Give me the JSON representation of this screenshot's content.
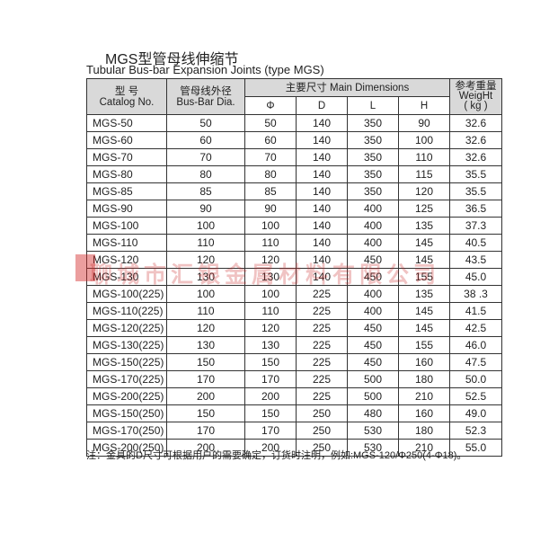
{
  "title": "MGS型管母线伸缩节",
  "subtitle": "Tubular Bus-bar Expansion Joints (type MGS)",
  "headers": {
    "catalog": "型 号\nCatalog No.",
    "diameter": "管母线外径\nBus-Bar Dia.",
    "main": "主要尺寸 Main Dimensions",
    "weight": "参考重量\nWeigHt\n( kg )",
    "phi": "Φ",
    "d": "D",
    "l": "L",
    "h": "H"
  },
  "rows": [
    [
      "MGS-50",
      "50",
      "50",
      "140",
      "350",
      "90",
      "32.6"
    ],
    [
      "MGS-60",
      "60",
      "60",
      "140",
      "350",
      "100",
      "32.6"
    ],
    [
      "MGS-70",
      "70",
      "70",
      "140",
      "350",
      "110",
      "32.6"
    ],
    [
      "MGS-80",
      "80",
      "80",
      "140",
      "350",
      "115",
      "35.5"
    ],
    [
      "MGS-85",
      "85",
      "85",
      "140",
      "350",
      "120",
      "35.5"
    ],
    [
      "MGS-90",
      "90",
      "90",
      "140",
      "400",
      "125",
      "36.5"
    ],
    [
      "MGS-100",
      "100",
      "100",
      "140",
      "400",
      "135",
      "37.3"
    ],
    [
      "MGS-110",
      "110",
      "110",
      "140",
      "400",
      "145",
      "40.5"
    ],
    [
      "MGS-120",
      "120",
      "120",
      "140",
      "450",
      "145",
      "43.5"
    ],
    [
      "MGS-130",
      "130",
      "130",
      "140",
      "450",
      "155",
      "45.0"
    ],
    [
      "MGS-100(225)",
      "100",
      "100",
      "225",
      "400",
      "135",
      "38 .3"
    ],
    [
      "MGS-110(225)",
      "110",
      "110",
      "225",
      "400",
      "145",
      "41.5"
    ],
    [
      "MGS-120(225)",
      "120",
      "120",
      "225",
      "450",
      "145",
      "42.5"
    ],
    [
      "MGS-130(225)",
      "130",
      "130",
      "225",
      "450",
      "155",
      "46.0"
    ],
    [
      "MGS-150(225)",
      "150",
      "150",
      "225",
      "450",
      "160",
      "47.5"
    ],
    [
      "MGS-170(225)",
      "170",
      "170",
      "225",
      "500",
      "180",
      "50.0"
    ],
    [
      "MGS-200(225)",
      "200",
      "200",
      "225",
      "500",
      "210",
      "52.5"
    ],
    [
      "MGS-150(250)",
      "150",
      "150",
      "250",
      "480",
      "160",
      "49.0"
    ],
    [
      "MGS-170(250)",
      "170",
      "170",
      "250",
      "530",
      "180",
      "52.3"
    ],
    [
      "MGS-200(250)",
      "200",
      "200",
      "250",
      "530",
      "210",
      "55.0"
    ]
  ],
  "note": "注：金具的D尺寸可根据用户的需要确定，订货时注明，例如:MGS-120/Φ250(4-Φ18)。",
  "watermark": "聊城市汇银金属材料有限公司"
}
